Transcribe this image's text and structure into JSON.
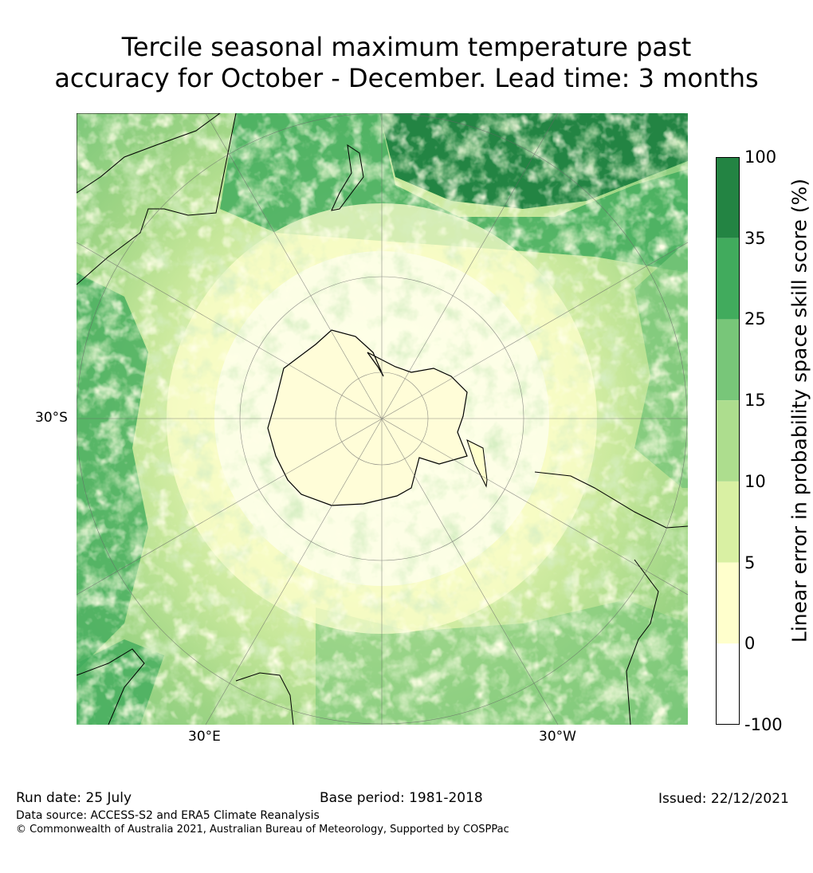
{
  "title": {
    "line1": "Tercile seasonal maximum temperature past",
    "line2": "accuracy for October - December. Lead time: 3 months"
  },
  "map": {
    "lat_label": "30°S",
    "lon_labels": [
      "30°E",
      "30°W"
    ]
  },
  "legend": {
    "label": "Linear error in probability space skill score (%)",
    "ticks": [
      "100",
      "35",
      "25",
      "15",
      "10",
      "5",
      "0",
      "-100"
    ],
    "bins": [
      {
        "range": "-100 to 0",
        "color": "#ffffff"
      },
      {
        "range": "0 to 5",
        "color": "#ffffcc"
      },
      {
        "range": "5 to 10",
        "color": "#d9f0a3"
      },
      {
        "range": "10 to 15",
        "color": "#addd8e"
      },
      {
        "range": "15 to 25",
        "color": "#78c679"
      },
      {
        "range": "25 to 35",
        "color": "#41ab5d"
      },
      {
        "range": "35 to 100",
        "color": "#238443"
      }
    ]
  },
  "footer": {
    "run_date": "Run date: 25 July",
    "base_period": "Base period: 1981-2018",
    "issued": "Issued: 22/12/2021",
    "data_source": "Data source: ACCESS-S2 and ERA5 Climate Reanalysis",
    "copyright": "© Commonwealth of Australia 2021, Australian Bureau of Meteorology, Supported by COSPPac"
  }
}
